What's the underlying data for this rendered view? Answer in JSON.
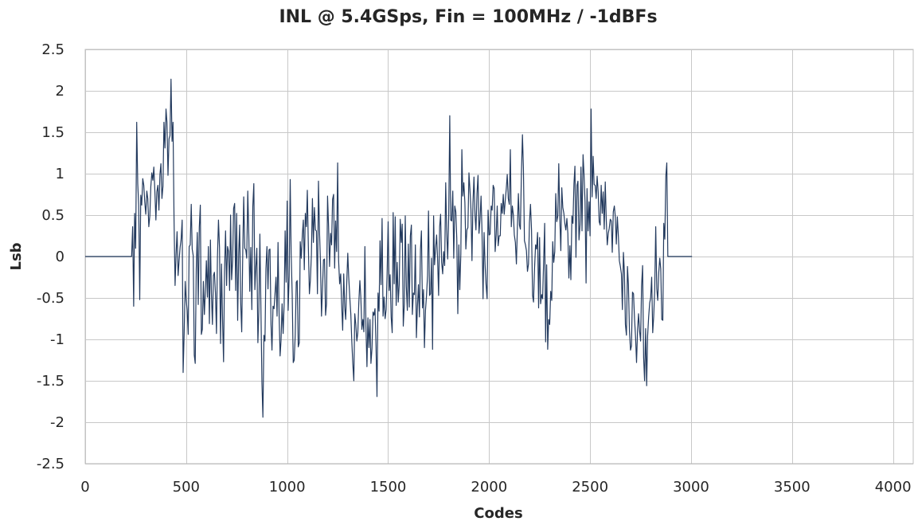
{
  "chart_data": {
    "type": "line",
    "title": "INL @ 5.4GSps, Fin = 100MHz / -1dBFs",
    "xlabel": "Codes",
    "ylabel": "Lsb",
    "xlim": [
      0,
      4100
    ],
    "ylim": [
      -2.5,
      2.5
    ],
    "xticks": [
      0,
      500,
      1000,
      1500,
      2000,
      2500,
      3000,
      3500,
      4000
    ],
    "yticks": [
      2.5,
      2,
      1.5,
      1,
      0.5,
      0,
      -0.5,
      -1,
      -1.5,
      -2,
      -2.5
    ],
    "grid": true,
    "legend": "none",
    "series_color": "#233A5E",
    "series": [
      {
        "x_step": 5,
        "values": [
          0,
          0,
          0,
          0,
          0,
          0,
          0,
          0,
          0,
          0,
          0,
          0,
          0,
          0,
          0,
          0,
          0,
          0,
          0,
          0,
          0,
          0,
          0,
          0,
          0,
          0,
          0,
          0,
          0,
          0,
          0,
          0,
          0,
          0,
          0,
          0,
          0,
          0,
          0,
          0,
          0,
          0,
          0,
          0,
          0,
          0,
          0,
          0.36,
          -0.6,
          0.52,
          0.1,
          1.62,
          0.88,
          0.62,
          -0.52,
          0.74,
          0.62,
          0.94,
          0.86,
          0.66,
          0.51,
          0.79,
          0.7,
          0.36,
          0.49,
          0.84,
          1.01,
          0.92,
          1.08,
          0.79,
          0.44,
          0.78,
          0.86,
          0.56,
          0.99,
          1.12,
          0.7,
          0.85,
          1.62,
          1.31,
          1.78,
          1.62,
          0.98,
          1.42,
          1.46,
          2.14,
          1.39,
          1.62,
          0.44,
          -0.35,
          0.02,
          0.3,
          -0.23,
          -0.04,
          0.11,
          0.21,
          0.44,
          -1.4,
          -0.93,
          -0.3,
          -0.52,
          -0.65,
          -0.94,
          0.12,
          0.14,
          0.63,
          0.09,
          0.01,
          -1.19,
          -1.29,
          -0.15,
          0.29,
          -0.58,
          0.35,
          0.62,
          -0.94,
          -0.88,
          -0.3,
          -0.7,
          -0.42,
          -0.05,
          -0.49,
          0.12,
          -0.81,
          0.2,
          -0.44,
          -0.82,
          -0.23,
          -0.19,
          -0.44,
          -0.93,
          -0.02,
          0.44,
          0.11,
          -1.05,
          -0.09,
          -0.76,
          -1.27,
          -0.18,
          0.31,
          -0.35,
          0.12,
          0.06,
          -0.41,
          0.5,
          -0.28,
          -0.05,
          0.58,
          0.64,
          -0.41,
          0.52,
          -0.77,
          0.04,
          0.38,
          -0.55,
          -0.91,
          0.05,
          0.72,
          0.1,
          0.08,
          -0.02,
          0.79,
          0.26,
          -0.42,
          0.11,
          -0.64,
          0.6,
          0.88,
          -0.4,
          -0.14,
          0.1,
          -1.04,
          -0.66,
          0.27,
          -0.62,
          -1.53,
          -1.94,
          -0.95,
          -1.02,
          -0.15,
          0.12,
          -0.39,
          0.08,
          0.09,
          -0.82,
          -1.13,
          -0.6,
          -0.63,
          -0.45,
          -0.25,
          -0.72,
          0.17,
          -0.67,
          -1.2,
          -1.01,
          -0.57,
          -0.93,
          -0.57,
          0.31,
          -0.31,
          0.67,
          -0.65,
          -0.24,
          0.93,
          0.03,
          -0.46,
          -1.28,
          -1.25,
          -0.95,
          -0.31,
          -0.29,
          -1.09,
          -1.04,
          0.18,
          -0.02,
          0.26,
          0.44,
          -0.16,
          0.52,
          0.36,
          0.8,
          0.12,
          -0.45,
          -0.29,
          0.02,
          0.7,
          0.17,
          0.59,
          0.32,
          0.31,
          -0.45,
          0.91,
          0.33,
          -0.07,
          -0.72,
          -0.4,
          -0.04,
          -0.03,
          -0.71,
          -0.57,
          0.73,
          0.36,
          -0.12,
          0.28,
          0.14,
          0.69,
          0.75,
          -0.14,
          0.43,
          0.06,
          1.13,
          -0.05,
          -0.33,
          -0.21,
          -0.57,
          -0.89,
          -0.21,
          -0.61,
          -0.76,
          -0.32,
          0.04,
          -0.25,
          -0.49,
          -0.69,
          -1.01,
          -1.29,
          -1.5,
          -0.69,
          -0.82,
          -1.02,
          -0.92,
          -0.55,
          -0.29,
          -0.49,
          -0.88,
          -0.76,
          -0.91,
          0.12,
          -0.84,
          -1.33,
          -0.74,
          -1.1,
          -0.76,
          -1.29,
          -1.11,
          -0.67,
          -0.71,
          -0.63,
          -1.09,
          -1.69,
          -0.44,
          -0.66,
          0.19,
          -0.34,
          0.46,
          -0.72,
          -0.49,
          -0.75,
          -0.64,
          -0.21,
          0.42,
          -0.41,
          -0.22,
          -0.73,
          -0.92,
          0.53,
          -0.33,
          0.48,
          -0.59,
          -0.07,
          -0.55,
          -0.34,
          0.45,
          0.17,
          0.39,
          -0.84,
          -0.58,
          0.49,
          -0.36,
          -0.65,
          0.15,
          -0.61,
          0.25,
          0.38,
          -0.7,
          -0.44,
          -0.46,
          0.14,
          -0.98,
          -0.6,
          -0.34,
          -0.73,
          0.08,
          0.31,
          -0.62,
          -0.4,
          -1.1,
          -0.65,
          -0.47,
          -0.23,
          0.55,
          -0.47,
          -0.45,
          -0.02,
          -1.12,
          0.49,
          -0.1,
          0.1,
          0.26,
          -0.03,
          -0.47,
          0.36,
          0.51,
          -0.07,
          -0.21,
          0.06,
          -0.11,
          0.89,
          0.32,
          -0.03,
          0.5,
          1.7,
          0.44,
          0.43,
          0.79,
          -0.02,
          0.61,
          0.54,
          0.22,
          -0.69,
          0.14,
          -0.4,
          0.03,
          1.29,
          0.73,
          0.89,
          0.65,
          0.09,
          0.32,
          0.35,
          1.01,
          0.82,
          0.57,
          -0.05,
          0.64,
          0.96,
          0.5,
          0.32,
          0.76,
          0.98,
          0.28,
          0.45,
          0.73,
          0.3,
          -0.51,
          0.29,
          -0.09,
          -0.34,
          -0.51,
          0.56,
          0.26,
          0.27,
          0.61,
          0.56,
          0.86,
          0.82,
          0.06,
          0.26,
          0.61,
          0.13,
          0.25,
          0.25,
          0.64,
          0.52,
          0.75,
          0.51,
          0.68,
          0.82,
          0.99,
          0.7,
          0.63,
          1.29,
          0.36,
          0.61,
          0.5,
          0.26,
          0.17,
          -0.09,
          0.34,
          0.76,
          0.38,
          0.33,
          1.0,
          1.47,
          1.07,
          0.19,
          0.14,
          0.07,
          -0.18,
          -0.09,
          0.41,
          0.63,
          0.32,
          -0.47,
          -0.55,
          -0.14,
          0.14,
          0.09,
          0.29,
          -0.62,
          0.23,
          -0.57,
          -0.46,
          -0.51,
          -0.07,
          0.4,
          -1.03,
          -0.1,
          -1.12,
          -0.76,
          -0.82,
          -0.42,
          -0.53,
          0.18,
          -0.07,
          0.06,
          0.76,
          0.42,
          0.49,
          1.12,
          0.47,
          0.07,
          0.83,
          0.59,
          0.52,
          0.4,
          0.32,
          0.46,
          0.28,
          -0.26,
          0.13,
          -0.28,
          0.49,
          0.4,
          0.88,
          1.09,
          -0.01,
          0.86,
          0.91,
          0.2,
          0.38,
          1.08,
          0.31,
          1.23,
          1.0,
          0.66,
          -0.32,
          0.82,
          0.31,
          0.66,
          0.25,
          1.78,
          0.72,
          1.21,
          0.87,
          0.86,
          0.7,
          0.97,
          0.78,
          0.42,
          0.38,
          0.86,
          0.52,
          0.78,
          0.33,
          0.9,
          0.46,
          0.14,
          0.28,
          0.34,
          0.45,
          0.43,
          0.05,
          0.54,
          0.61,
          0.47,
          0.15,
          0.48,
          0.24,
          -0.05,
          -0.12,
          -0.21,
          -0.64,
          0.05,
          -0.2,
          -0.82,
          -0.95,
          -0.12,
          -0.34,
          -0.9,
          -1.13,
          -1.08,
          -0.43,
          -0.45,
          -0.76,
          -0.96,
          -1.28,
          -0.88,
          -0.69,
          -0.9,
          -1.02,
          -0.36,
          -0.11,
          -1.22,
          -1.5,
          -0.87,
          -1.56,
          -0.96,
          -0.73,
          -0.56,
          -0.5,
          -0.25,
          -0.92,
          -0.73,
          -0.41,
          0.36,
          -0.39,
          -0.53,
          -0.19,
          -0.02,
          -0.15,
          -0.76,
          -0.77,
          0.4,
          0.21,
          0.97,
          1.13,
          0,
          0,
          0,
          0,
          0,
          0,
          0,
          0,
          0,
          0,
          0,
          0,
          0,
          0,
          0,
          0,
          0,
          0,
          0,
          0,
          0,
          0,
          0,
          0,
          0
        ]
      }
    ]
  }
}
